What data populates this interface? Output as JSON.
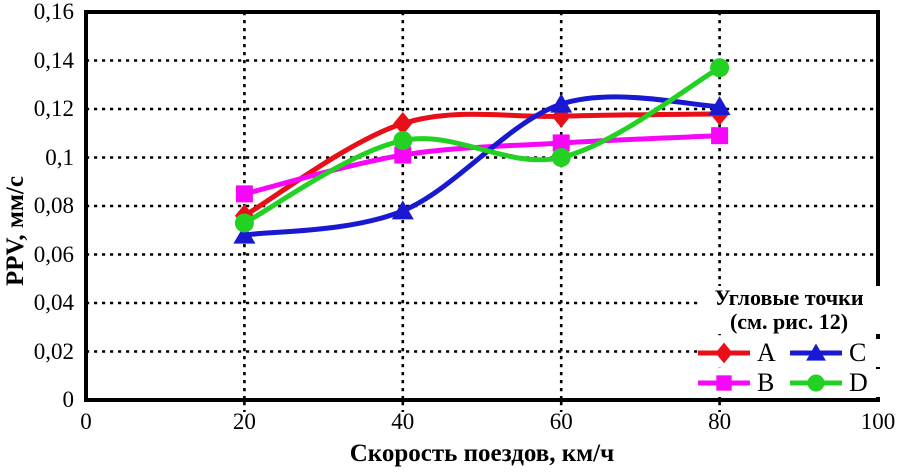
{
  "chart_data": {
    "type": "line",
    "title": "",
    "xlabel": "Скорость поездов, км/ч",
    "ylabel": "PPV, мм/с",
    "xlim": [
      0,
      100
    ],
    "ylim": [
      0,
      0.16
    ],
    "grid": true,
    "line_style": "smooth",
    "grid_color": "#000000",
    "x": [
      20,
      40,
      60,
      80
    ],
    "x_ticks": [
      0,
      20,
      40,
      60,
      80,
      100
    ],
    "x_tick_labels": [
      "0",
      "20",
      "40",
      "60",
      "80",
      "100"
    ],
    "y_ticks": [
      0,
      0.02,
      0.04,
      0.06,
      0.08,
      0.1,
      0.12,
      0.14,
      0.16
    ],
    "y_tick_labels": [
      "0",
      "0,02",
      "0,04",
      "0,06",
      "0,08",
      "0,1",
      "0,12",
      "0,14",
      "0,16"
    ],
    "series": [
      {
        "name": "A",
        "color": "#e90f19",
        "marker": "diamond",
        "values": [
          0.076,
          0.114,
          0.117,
          0.118
        ]
      },
      {
        "name": "B",
        "color": "#f707f7",
        "marker": "square",
        "values": [
          0.085,
          0.101,
          0.106,
          0.109
        ]
      },
      {
        "name": "C",
        "color": "#1919d2",
        "marker": "triangle",
        "values": [
          0.068,
          0.078,
          0.122,
          0.121
        ]
      },
      {
        "name": "D",
        "color": "#22d122",
        "marker": "circle",
        "values": [
          0.073,
          0.107,
          0.1,
          0.137
        ]
      }
    ],
    "legend": {
      "title_line1": "Угловые точки",
      "title_line2": "(см. рис. 12)",
      "position": "bottom-right",
      "entries": [
        {
          "series": "A",
          "label": "A"
        },
        {
          "series": "C",
          "label": "C"
        },
        {
          "series": "B",
          "label": "B"
        },
        {
          "series": "D",
          "label": "D"
        }
      ]
    }
  }
}
